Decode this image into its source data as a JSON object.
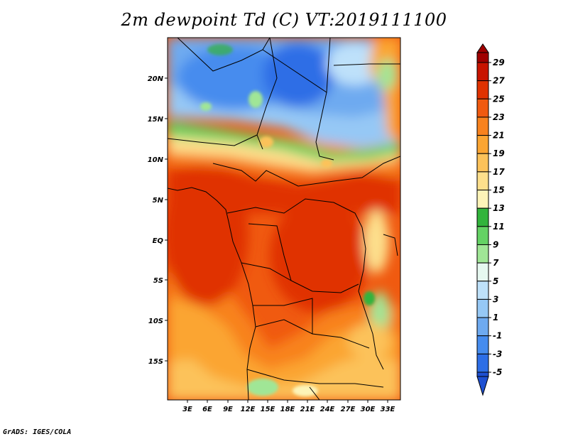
{
  "title": "2m dewpoint Td (C) VT:2019111100",
  "footer": "GrADS: IGES/COLA",
  "map": {
    "lon_labels": [
      "3E",
      "6E",
      "9E",
      "12E",
      "15E",
      "18E",
      "21E",
      "24E",
      "27E",
      "30E",
      "33E"
    ],
    "lat_labels": [
      "20N",
      "15N",
      "10N",
      "5N",
      "EQ",
      "5S",
      "10S",
      "15S"
    ]
  },
  "colorbar": {
    "labels": [
      "29",
      "27",
      "25",
      "23",
      "21",
      "19",
      "17",
      "15",
      "13",
      "11",
      "9",
      "7",
      "5",
      "3",
      "1",
      "-1",
      "-3",
      "-5"
    ],
    "colors": [
      "#a00000",
      "#c81400",
      "#e03200",
      "#f05a10",
      "#f8821e",
      "#fba532",
      "#fcc25a",
      "#fddf8c",
      "#fdf4b8",
      "#32b43c",
      "#64d264",
      "#a0e696",
      "#e6f8f0",
      "#bee1fa",
      "#96c8f5",
      "#6eaaf0",
      "#468cee",
      "#2d6ee6",
      "#1e50d2"
    ]
  }
}
